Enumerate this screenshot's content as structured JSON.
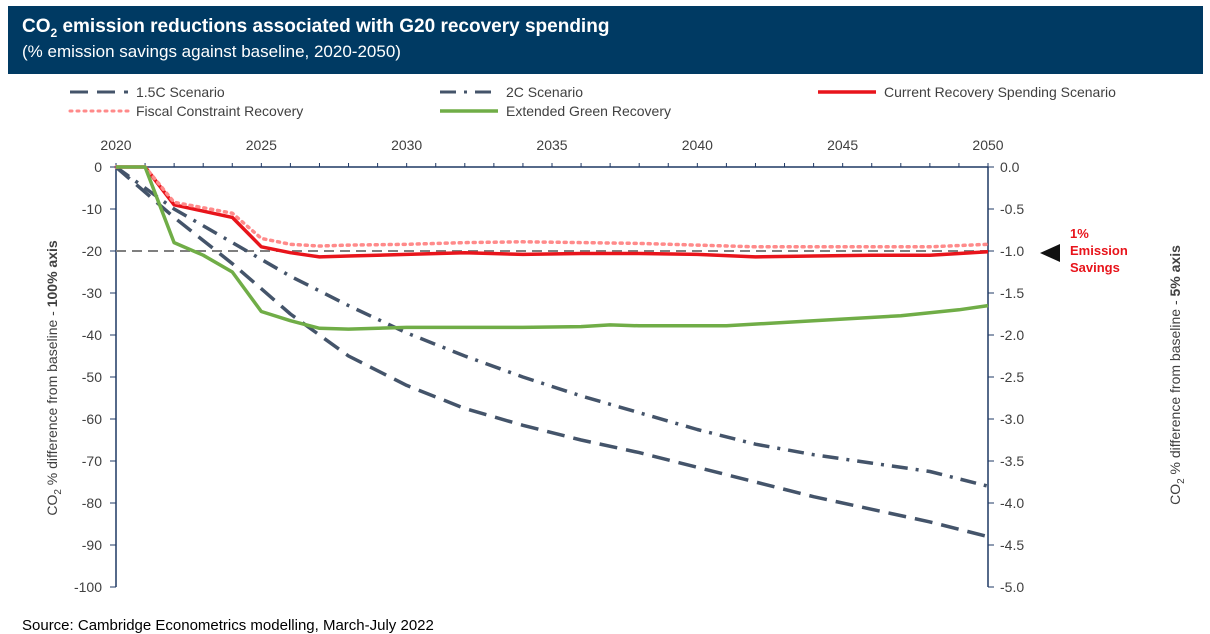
{
  "header": {
    "title_prefix": "CO",
    "title_sub": "2",
    "title_rest": " emission reductions associated with G20 recovery spending",
    "subtitle": "(% emission savings against baseline, 2020-2050)"
  },
  "source": "Source: Cambridge Econometrics modelling, March-July 2022",
  "chart_data": {
    "type": "line",
    "x_ticks": [
      2020,
      2025,
      2030,
      2035,
      2040,
      2045,
      2050
    ],
    "xlim": [
      2020,
      2050
    ],
    "left_axis": {
      "label_prefix": "CO",
      "label_sub": "2",
      "label_mid": " % difference from baseline - ",
      "label_bold": "100% axis",
      "ylim": [
        -100,
        0
      ],
      "ticks": [
        "0",
        "-10",
        "-20",
        "-30",
        "-40",
        "-50",
        "-60",
        "-70",
        "-80",
        "-90",
        "-100"
      ],
      "tick_values": [
        0,
        -10,
        -20,
        -30,
        -40,
        -50,
        -60,
        -70,
        -80,
        -90,
        -100
      ]
    },
    "right_axis": {
      "label_prefix": "CO",
      "label_sub": "2",
      "label_mid": " % difference from baseline - ",
      "label_bold": "5% axis",
      "ylim": [
        -5,
        0
      ],
      "ticks": [
        "0.0",
        "-0.5",
        "-1.0",
        "-1.5",
        "-2.0",
        "-2.5",
        "-3.0",
        "-3.5",
        "-4.0",
        "-4.5",
        "-5.0"
      ],
      "tick_values": [
        0,
        -0.5,
        -1.0,
        -1.5,
        -2.0,
        -2.5,
        -3.0,
        -3.5,
        -4.0,
        -4.5,
        -5.0
      ]
    },
    "reference_line": {
      "axis": "right",
      "y": -1.0
    },
    "annotation": {
      "line1": "1%",
      "line2": "Emission",
      "line3": "Savings"
    },
    "legend_position": "top",
    "series": [
      {
        "name": "1.5C Scenario",
        "axis": "left",
        "color": "#44546a",
        "dash": "long-dash",
        "x": [
          2020,
          2022,
          2024,
          2026,
          2028,
          2030,
          2032,
          2034,
          2036,
          2038,
          2040,
          2042,
          2044,
          2046,
          2048,
          2050
        ],
        "y": [
          0,
          -12,
          -23,
          -35,
          -45,
          -52,
          -57.5,
          -61.5,
          -65,
          -68,
          -71.5,
          -75,
          -78.5,
          -81.5,
          -84.5,
          -88
        ]
      },
      {
        "name": "2C Scenario",
        "axis": "left",
        "color": "#44546a",
        "dash": "dash-dot",
        "x": [
          2020,
          2022,
          2024,
          2026,
          2028,
          2030,
          2032,
          2034,
          2036,
          2038,
          2040,
          2042,
          2044,
          2046,
          2048,
          2050
        ],
        "y": [
          0,
          -10,
          -18,
          -26,
          -33,
          -39.5,
          -45,
          -50,
          -54.5,
          -58.5,
          -62.5,
          -66,
          -68.5,
          -70.5,
          -72.5,
          -76
        ]
      },
      {
        "name": "Current Recovery Spending Scenario",
        "axis": "right",
        "color": "#e8141b",
        "dash": "solid",
        "x": [
          2020,
          2021,
          2022,
          2024,
          2025,
          2026,
          2027,
          2028,
          2030,
          2032,
          2034,
          2036,
          2038,
          2040,
          2042,
          2044,
          2046,
          2048,
          2050
        ],
        "y": [
          0,
          0,
          -0.45,
          -0.6,
          -0.95,
          -1.02,
          -1.07,
          -1.06,
          -1.04,
          -1.02,
          -1.04,
          -1.03,
          -1.03,
          -1.04,
          -1.07,
          -1.06,
          -1.05,
          -1.05,
          -1.01
        ]
      },
      {
        "name": "Fiscal Constraint Recovery",
        "axis": "right",
        "color": "#ff8a8a",
        "dash": "dotted",
        "x": [
          2020,
          2021,
          2022,
          2024,
          2025,
          2026,
          2027,
          2028,
          2030,
          2032,
          2034,
          2036,
          2038,
          2040,
          2042,
          2044,
          2046,
          2048,
          2050
        ],
        "y": [
          0,
          0,
          -0.42,
          -0.55,
          -0.85,
          -0.92,
          -0.94,
          -0.93,
          -0.92,
          -0.9,
          -0.89,
          -0.9,
          -0.91,
          -0.93,
          -0.95,
          -0.95,
          -0.95,
          -0.95,
          -0.92
        ]
      },
      {
        "name": "Extended Green Recovery",
        "axis": "right",
        "color": "#70ad47",
        "dash": "solid",
        "x": [
          2020,
          2021,
          2022,
          2023,
          2024,
          2025,
          2026,
          2027,
          2028,
          2030,
          2032,
          2034,
          2036,
          2037,
          2038,
          2041,
          2044,
          2047,
          2049,
          2050
        ],
        "y": [
          0,
          0,
          -0.9,
          -1.05,
          -1.25,
          -1.72,
          -1.83,
          -1.92,
          -1.93,
          -1.91,
          -1.91,
          -1.91,
          -1.9,
          -1.88,
          -1.89,
          -1.89,
          -1.83,
          -1.77,
          -1.7,
          -1.65
        ]
      }
    ]
  }
}
